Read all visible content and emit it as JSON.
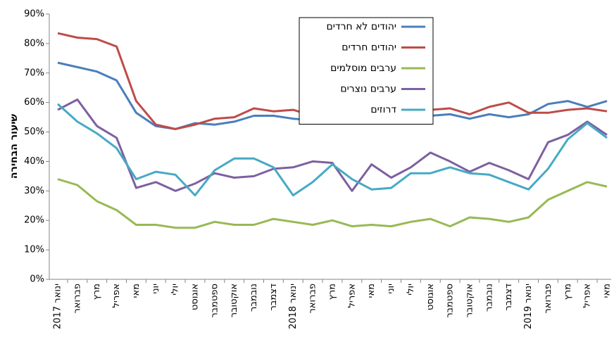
{
  "chart_data": {
    "type": "line",
    "y_label": "שיעור הבחירה",
    "categories": [
      "ינואר 2017",
      "פברואר",
      "מרץ",
      "אפריל",
      "מאי",
      "יוני",
      "יולי",
      "אוגוסט",
      "ספטמבר",
      "אוקטובר",
      "נובמבר",
      "דצמבר",
      "ינואר 2018",
      "פברואר",
      "מרץ",
      "אפריל",
      "מאי",
      "יוני",
      "יולי",
      "אוגוסט",
      "ספטמבר",
      "אוקטובר",
      "נובמבר",
      "דצמבר",
      "ינואר 2019",
      "פברואר",
      "מרץ",
      "אפריל",
      "מאי"
    ],
    "series": [
      {
        "name": "יהודים לא חרדים",
        "color": "#4a7ebb",
        "values": [
          73.5,
          72,
          70.5,
          67.5,
          56.5,
          52,
          51,
          53,
          52.5,
          53.5,
          55.5,
          55.5,
          54.5,
          54,
          54,
          55,
          53,
          53.5,
          54.5,
          55.5,
          56,
          54.5,
          56,
          55,
          56,
          59.5,
          60.5,
          58.5,
          60.5
        ]
      },
      {
        "name": "יהודים חרדים",
        "color": "#be4b48",
        "values": [
          83.5,
          82,
          81.5,
          79,
          60.5,
          52.5,
          51,
          52.5,
          54.5,
          55,
          58,
          57,
          57.5,
          55.5,
          55.5,
          55,
          56,
          54.5,
          56,
          57.5,
          58,
          56,
          58.5,
          60,
          56.5,
          56.5,
          57.5,
          58,
          57
        ]
      },
      {
        "name": "ערבים מוסלמים",
        "color": "#98b954",
        "values": [
          34,
          32,
          26.5,
          23.5,
          18.5,
          18.5,
          17.5,
          17.5,
          19.5,
          18.5,
          18.5,
          20.5,
          19.5,
          18.5,
          20,
          18,
          18.5,
          18,
          19.5,
          20.5,
          18,
          21,
          20.5,
          19.5,
          21,
          27,
          30,
          33,
          31.5
        ]
      },
      {
        "name": "ערבים נוצרים",
        "color": "#7d60a0",
        "values": [
          57.5,
          61,
          52,
          48,
          31,
          33,
          30,
          32.5,
          36,
          34.5,
          35,
          37.5,
          38,
          40,
          39.5,
          30,
          39,
          34.5,
          38,
          43,
          40,
          36.5,
          39.5,
          37,
          34,
          46.5,
          49,
          53.5,
          49
        ]
      },
      {
        "name": "דרוזים",
        "color": "#46aac5",
        "values": [
          59.5,
          53.5,
          49.5,
          44.5,
          34,
          36.5,
          35.5,
          28.5,
          37,
          41,
          41,
          38,
          28.5,
          33,
          39,
          34,
          30.5,
          31,
          36,
          36,
          38,
          36,
          35.5,
          33,
          30.5,
          37.5,
          47.5,
          53,
          48
        ]
      }
    ],
    "ylim": [
      0,
      90
    ],
    "yticks": [
      {
        "value": 0,
        "label": "0%"
      },
      {
        "value": 10,
        "label": "10%"
      },
      {
        "value": 20,
        "label": "20%"
      },
      {
        "value": 30,
        "label": "30%"
      },
      {
        "value": 40,
        "label": "40%"
      },
      {
        "value": 50,
        "label": "50%"
      },
      {
        "value": 60,
        "label": "60%"
      },
      {
        "value": 70,
        "label": "70%"
      },
      {
        "value": 80,
        "label": "80%"
      },
      {
        "value": 90,
        "label": "90%"
      }
    ],
    "grid": false,
    "legend_position": "top"
  }
}
